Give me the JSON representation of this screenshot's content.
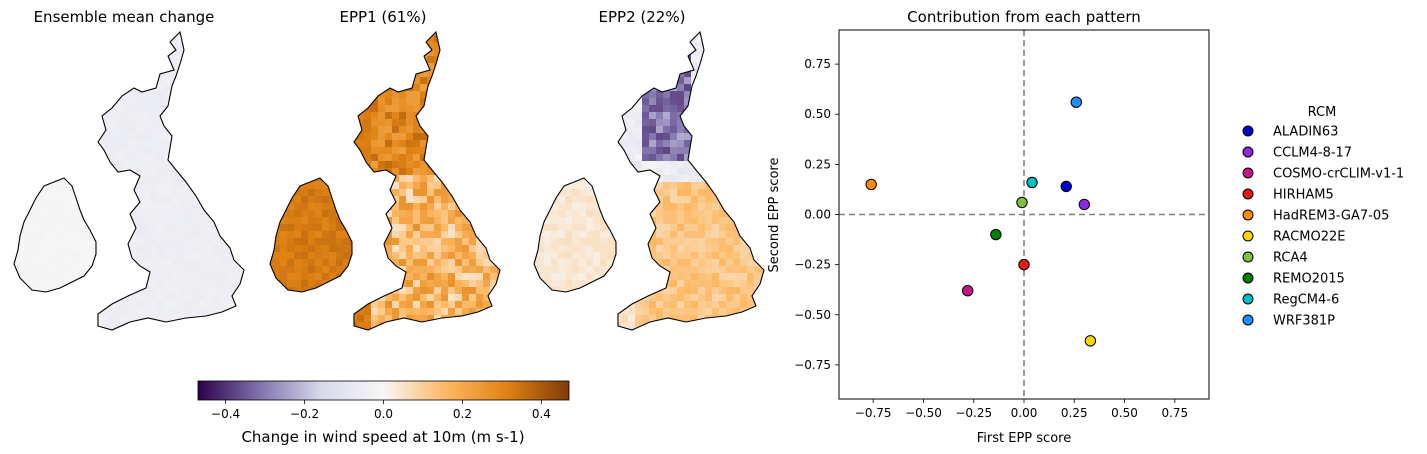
{
  "maps": [
    {
      "title": "Ensemble mean change",
      "palette": "mean"
    },
    {
      "title": "EPP1 (61%)",
      "palette": "epp1"
    },
    {
      "title": "EPP2 (22%)",
      "palette": "epp2"
    }
  ],
  "colorbar": {
    "label": "Change in wind speed at 10m (m s-1)",
    "range": [
      -0.47,
      0.47
    ],
    "ticks": [
      -0.4,
      -0.2,
      0.0,
      0.2,
      0.4
    ],
    "tick_labels": [
      "−0.4",
      "−0.2",
      "0.0",
      "0.2",
      "0.4"
    ],
    "colors": [
      "#2d004b",
      "#8073ac",
      "#d8daeb",
      "#f7f7f7",
      "#fdb863",
      "#e08214",
      "#7f3b08"
    ]
  },
  "chart_data": {
    "type": "scatter",
    "title": "Contribution from each pattern",
    "xlabel": "First EPP score",
    "ylabel": "Second EPP score",
    "xlim": [
      -0.92,
      0.92
    ],
    "ylim": [
      -0.92,
      0.92
    ],
    "xticks": [
      -0.75,
      -0.5,
      -0.25,
      0.0,
      0.25,
      0.5,
      0.75
    ],
    "xtick_labels": [
      "−0.75",
      "−0.50",
      "−0.25",
      "0.00",
      "0.25",
      "0.50",
      "0.75"
    ],
    "yticks": [
      0.75,
      0.5,
      0.25,
      0.0,
      -0.25,
      -0.5,
      -0.75
    ],
    "ytick_labels": [
      "0.75",
      "0.50",
      "0.25",
      "0.00",
      "−0.25",
      "−0.50",
      "−0.75"
    ],
    "reference_lines": {
      "x": 0,
      "y": 0,
      "style": "dashed",
      "color": "#808080"
    },
    "legend": {
      "title": "RCM",
      "placement": "outside-right"
    },
    "series": [
      {
        "name": "ALADIN63",
        "x": 0.21,
        "y": 0.14,
        "color": "#0000cd"
      },
      {
        "name": "CCLM4-8-17",
        "x": 0.3,
        "y": 0.05,
        "color": "#8a2be2"
      },
      {
        "name": "COSMO-crCLIM-v1-1",
        "x": -0.28,
        "y": -0.38,
        "color": "#c71585"
      },
      {
        "name": "HIRHAM5",
        "x": 0.0,
        "y": -0.25,
        "color": "#e31a1c"
      },
      {
        "name": "HadREM3-GA7-05",
        "x": -0.76,
        "y": 0.15,
        "color": "#ff8c00"
      },
      {
        "name": "RACMO22E",
        "x": 0.33,
        "y": -0.63,
        "color": "#ffd700"
      },
      {
        "name": "RCA4",
        "x": -0.01,
        "y": 0.06,
        "color": "#7fbf3f"
      },
      {
        "name": "REMO2015",
        "x": -0.14,
        "y": -0.1,
        "color": "#007f00"
      },
      {
        "name": "RegCM4-6",
        "x": 0.04,
        "y": 0.16,
        "color": "#00bfc4"
      },
      {
        "name": "WRF381P",
        "x": 0.26,
        "y": 0.56,
        "color": "#1e90ff"
      }
    ]
  }
}
